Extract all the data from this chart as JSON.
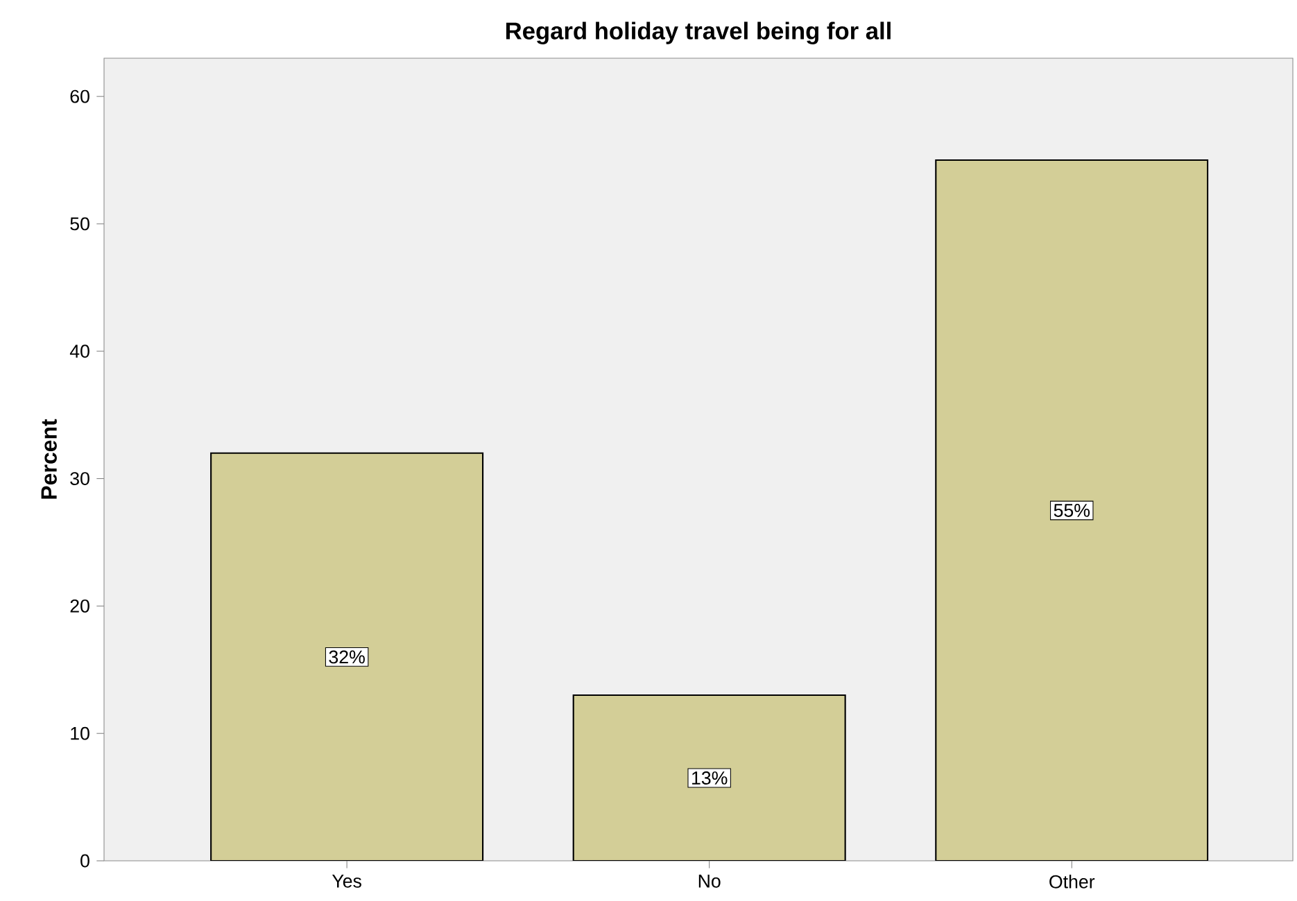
{
  "chart_data": {
    "type": "bar",
    "title": "Regard holiday travel being for all",
    "ylabel": "Percent",
    "categories": [
      "Yes",
      "No",
      "Other"
    ],
    "values": [
      32,
      13,
      55
    ],
    "value_labels": [
      "32%",
      "13%",
      "55%"
    ],
    "color": "#d3ce97",
    "ylim": [
      0,
      63
    ],
    "yticks": [
      0,
      10,
      20,
      30,
      40,
      50,
      60
    ],
    "grid": false
  }
}
